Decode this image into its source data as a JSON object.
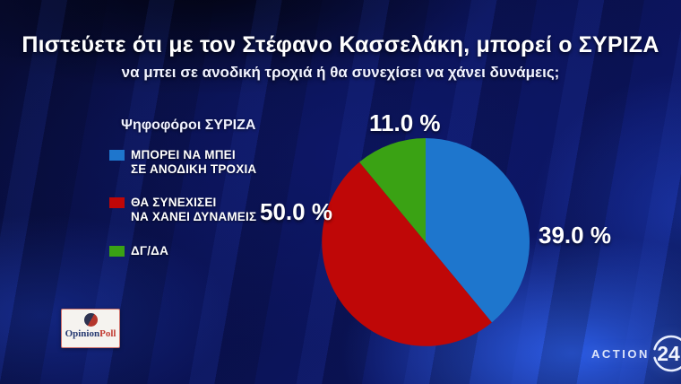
{
  "header": {
    "title": "Πιστεύετε ότι με τον Στέφανο Κασσελάκη, μπορεί ο ΣΥΡΙΖΑ",
    "subtitle": "να μπει σε ανοδική τροχιά ή θα συνεχίσει να χάνει δυνάμεις;"
  },
  "legend": {
    "title": "Ψηφοφόροι ΣΥΡΙΖΑ",
    "items": [
      {
        "line1": "ΜΠΟΡΕΙ ΝΑ ΜΠΕΙ",
        "line2": "ΣΕ ΑΝΟΔΙΚΗ ΤΡΟΧΙΑ",
        "color": "#1e76cd"
      },
      {
        "line1": "ΘΑ ΣΥΝΕΧΙΣΕΙ",
        "line2": "ΝΑ ΧΑΝΕΙ ΔΥΝΑΜΕΙΣ",
        "color": "#bf0707"
      },
      {
        "line1": "ΔΓ/ΔΑ",
        "line2": "",
        "color": "#3aa214"
      }
    ]
  },
  "logos": {
    "opinionpoll": {
      "part1": "Opinion",
      "part2": "Poll"
    },
    "action24": {
      "text": "ACTION",
      "number": "24"
    }
  },
  "chart_data": {
    "type": "pie",
    "title": "Πιστεύετε ότι με τον Στέφανο Κασσελάκη, μπορεί ο ΣΥΡΙΖΑ να μπει σε ανοδική τροχιά ή θα συνεχίσει να χάνει δυνάμεις;",
    "legend_title": "Ψηφοφόροι ΣΥΡΙΖΑ",
    "start_angle_deg": 0,
    "direction": "clockwise",
    "slices": [
      {
        "label": "ΜΠΟΡΕΙ ΝΑ ΜΠΕΙ ΣΕ ΑΝΟΔΙΚΗ ΤΡΟΧΙΑ",
        "value": 39.0,
        "display": "39.0 %",
        "color": "#1e76cd"
      },
      {
        "label": "ΘΑ ΣΥΝΕΧΙΣΕΙ ΝΑ ΧΑΝΕΙ ΔΥΝΑΜΕΙΣ",
        "value": 50.0,
        "display": "50.0 %",
        "color": "#bf0707"
      },
      {
        "label": "ΔΓ/ΔΑ",
        "value": 11.0,
        "display": "11.0 %",
        "color": "#3aa214"
      }
    ]
  }
}
